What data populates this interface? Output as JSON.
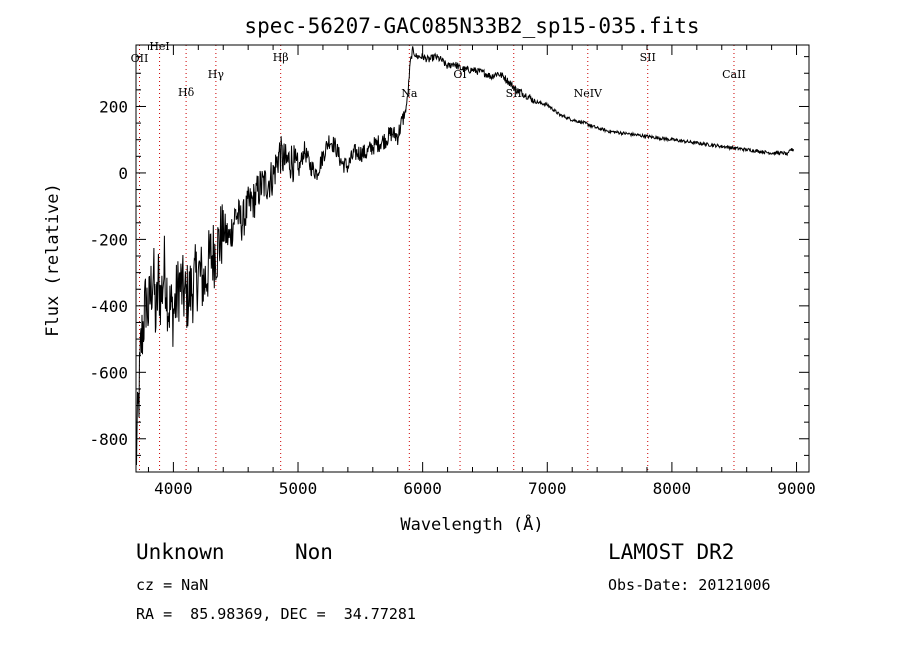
{
  "chart_data": {
    "type": "line",
    "title": "spec-56207-GAC085N33B2_sp15-035.fits",
    "xlabel": "Wavelength (Å)",
    "ylabel": "Flux (relative)",
    "xlim": [
      3700,
      9100
    ],
    "ylim": [
      -900,
      385
    ],
    "xticks": [
      4000,
      5000,
      6000,
      7000,
      8000,
      9000
    ],
    "yticks": [
      -800,
      -600,
      -400,
      -200,
      0,
      200
    ],
    "grid": false,
    "series": [
      {
        "name": "spectrum",
        "x": [
          3700,
          3720,
          3740,
          3760,
          3780,
          3800,
          3820,
          3840,
          3860,
          3880,
          3900,
          3930,
          3960,
          4000,
          4050,
          4100,
          4150,
          4200,
          4250,
          4300,
          4350,
          4400,
          4450,
          4500,
          4550,
          4600,
          4650,
          4700,
          4750,
          4800,
          4850,
          4900,
          4950,
          5000,
          5050,
          5100,
          5150,
          5200,
          5250,
          5300,
          5350,
          5400,
          5450,
          5500,
          5550,
          5600,
          5650,
          5700,
          5750,
          5800,
          5830,
          5860,
          5880,
          5900,
          5920,
          5950,
          6000,
          6050,
          6100,
          6150,
          6200,
          6250,
          6300,
          6350,
          6400,
          6450,
          6500,
          6550,
          6600,
          6650,
          6700,
          6750,
          6800,
          6850,
          6900,
          6950,
          7000,
          7100,
          7200,
          7300,
          7400,
          7500,
          7600,
          7700,
          7800,
          7900,
          8000,
          8100,
          8200,
          8300,
          8400,
          8500,
          8600,
          8700,
          8800,
          8850,
          8900,
          8930,
          8950,
          8980
        ],
        "y": [
          -870,
          -700,
          -520,
          -450,
          -380,
          -420,
          -350,
          -300,
          -450,
          -320,
          -380,
          -280,
          -400,
          -420,
          -330,
          -380,
          -350,
          -300,
          -330,
          -250,
          -230,
          -170,
          -200,
          -120,
          -150,
          -100,
          -80,
          -40,
          -30,
          -10,
          60,
          30,
          40,
          0,
          70,
          20,
          0,
          50,
          100,
          80,
          30,
          20,
          60,
          60,
          60,
          80,
          90,
          100,
          120,
          110,
          150,
          180,
          230,
          330,
          370,
          350,
          350,
          340,
          350,
          340,
          320,
          330,
          315,
          310,
          310,
          305,
          300,
          290,
          300,
          290,
          270,
          250,
          240,
          230,
          215,
          210,
          205,
          175,
          160,
          150,
          135,
          125,
          120,
          115,
          110,
          105,
          100,
          95,
          90,
          85,
          80,
          75,
          70,
          65,
          60,
          60,
          60,
          55,
          70,
          70
        ],
        "color": "#000000"
      }
    ],
    "lines": [
      {
        "label": "OII",
        "x": 3728
      },
      {
        "label": "HeI",
        "x": 3889
      },
      {
        "label": "Hδ",
        "x": 4102
      },
      {
        "label": "Hγ",
        "x": 4341
      },
      {
        "label": "Hβ",
        "x": 4861
      },
      {
        "label": "Na",
        "x": 5893
      },
      {
        "label": "OI",
        "x": 6300
      },
      {
        "label": "SII",
        "x": 6731
      },
      {
        "label": "NeIV",
        "x": 7325
      },
      {
        "label": "SII",
        "x": 7806
      },
      {
        "label": "CaII",
        "x": 8498
      }
    ],
    "line_color": "#cc0000"
  },
  "info": {
    "class": "Unknown",
    "subclass": "Non",
    "survey": "LAMOST DR2",
    "cz": "cz = NaN",
    "obs_date": "Obs-Date: 20121006",
    "coords": "RA =  85.98369, DEC =  34.77281"
  }
}
